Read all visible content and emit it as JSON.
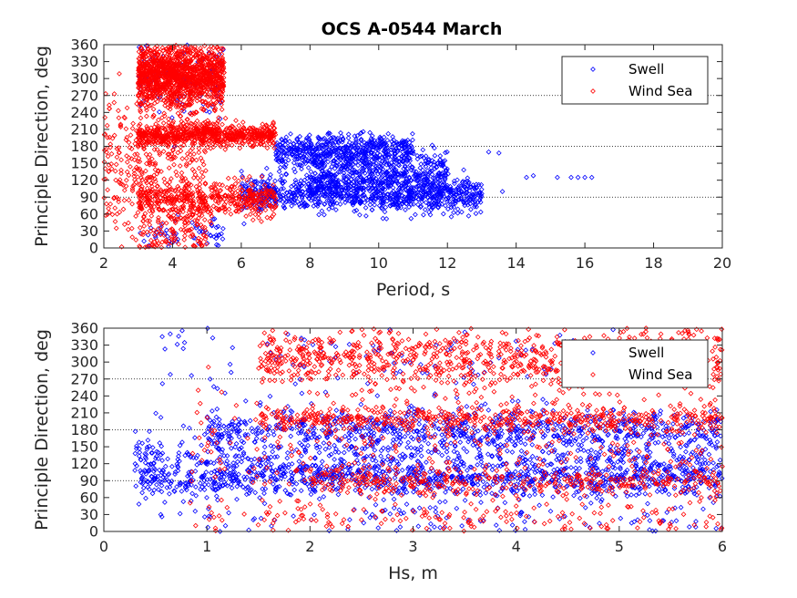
{
  "figure": {
    "title": "OCS A-0544 March",
    "colors": {
      "swell": "#0000ff",
      "wind_sea": "#ff0000",
      "axes": "#262626",
      "reference_lines": "#000000"
    }
  },
  "chart_data": [
    {
      "type": "scatter",
      "title": "OCS A-0544 March",
      "xlabel": "Period, s",
      "ylabel": "Principle Direction, deg",
      "xlim": [
        2,
        20
      ],
      "ylim": [
        0,
        360
      ],
      "xticks": [
        2,
        4,
        6,
        8,
        10,
        12,
        14,
        16,
        18,
        20
      ],
      "yticks": [
        0,
        30,
        60,
        90,
        120,
        150,
        180,
        210,
        240,
        270,
        300,
        330,
        360
      ],
      "reference_lines_y": [
        90,
        180,
        270
      ],
      "legend": {
        "entries": [
          "Swell",
          "Wind Sea"
        ],
        "location": "top-right"
      },
      "series": [
        {
          "name": "Swell",
          "marker": "diamond-open",
          "clusters": [
            {
              "x_range": [
                6,
                13
              ],
              "y_mean": 95,
              "y_sd": 15,
              "count": 900
            },
            {
              "x_range": [
                7,
                11
              ],
              "y_mean": 170,
              "y_sd": 15,
              "count": 550
            },
            {
              "x_range": [
                8,
                12
              ],
              "y_mean": 130,
              "y_sd": 20,
              "count": 450
            },
            {
              "x_range": [
                3,
                5.5
              ],
              "y_mean": 300,
              "y_sd": 40,
              "count": 120
            },
            {
              "x_range": [
                3,
                5.5
              ],
              "y_mean": 20,
              "y_sd": 15,
              "count": 60
            }
          ],
          "points": [
            [
              13.2,
              170
            ],
            [
              13.5,
              168
            ],
            [
              14.3,
              125
            ],
            [
              14.5,
              128
            ],
            [
              15.2,
              125
            ],
            [
              15.6,
              125
            ],
            [
              15.8,
              125
            ],
            [
              16.0,
              125
            ],
            [
              16.2,
              125
            ],
            [
              13.6,
              100
            ],
            [
              13.0,
              96
            ]
          ]
        },
        {
          "name": "Wind Sea",
          "marker": "diamond-open",
          "clusters": [
            {
              "x_range": [
                3,
                5.5
              ],
              "y_mean": 305,
              "y_sd": 28,
              "count": 1400
            },
            {
              "x_range": [
                3,
                7
              ],
              "y_mean": 200,
              "y_sd": 10,
              "count": 700
            },
            {
              "x_range": [
                3,
                7
              ],
              "y_mean": 85,
              "y_sd": 15,
              "count": 450
            },
            {
              "x_range": [
                2,
                5
              ],
              "y_mean": 140,
              "y_sd": 60,
              "count": 350
            },
            {
              "x_range": [
                3,
                5
              ],
              "y_mean": 20,
              "y_sd": 20,
              "count": 120
            }
          ],
          "points": []
        }
      ]
    },
    {
      "type": "scatter",
      "title": "",
      "xlabel": "Hs, m",
      "ylabel": "Principle Direction, deg",
      "xlim": [
        0,
        6
      ],
      "ylim": [
        0,
        360
      ],
      "xticks": [
        0,
        1,
        2,
        3,
        4,
        5,
        6
      ],
      "yticks": [
        0,
        30,
        60,
        90,
        120,
        150,
        180,
        210,
        240,
        270,
        300,
        330,
        360
      ],
      "reference_lines_y": [
        90,
        180,
        270
      ],
      "legend": {
        "entries": [
          "Swell",
          "Wind Sea"
        ],
        "location": "top-right"
      },
      "series": [
        {
          "name": "Swell",
          "marker": "diamond-open",
          "clusters": [
            {
              "x_range": [
                0.3,
                6
              ],
              "y_mean": 95,
              "y_sd": 18,
              "count": 1000
            },
            {
              "x_range": [
                1,
                6
              ],
              "y_mean": 180,
              "y_sd": 18,
              "count": 700
            },
            {
              "x_range": [
                0.3,
                6
              ],
              "y_mean": 135,
              "y_sd": 25,
              "count": 500
            },
            {
              "x_range": [
                0.5,
                5
              ],
              "y_mean": 300,
              "y_sd": 40,
              "count": 120
            },
            {
              "x_range": [
                0.5,
                6
              ],
              "y_mean": 25,
              "y_sd": 15,
              "count": 120
            }
          ],
          "points": []
        },
        {
          "name": "Wind Sea",
          "marker": "diamond-open",
          "clusters": [
            {
              "x_range": [
                1.5,
                6
              ],
              "y_mean": 305,
              "y_sd": 28,
              "count": 900
            },
            {
              "x_range": [
                1.5,
                6
              ],
              "y_mean": 200,
              "y_sd": 10,
              "count": 450
            },
            {
              "x_range": [
                2,
                6
              ],
              "y_mean": 88,
              "y_sd": 12,
              "count": 300
            },
            {
              "x_range": [
                0.8,
                6
              ],
              "y_mean": 140,
              "y_sd": 60,
              "count": 400
            },
            {
              "x_range": [
                1,
                6
              ],
              "y_mean": 20,
              "y_sd": 15,
              "count": 150
            }
          ],
          "points": []
        }
      ]
    }
  ]
}
